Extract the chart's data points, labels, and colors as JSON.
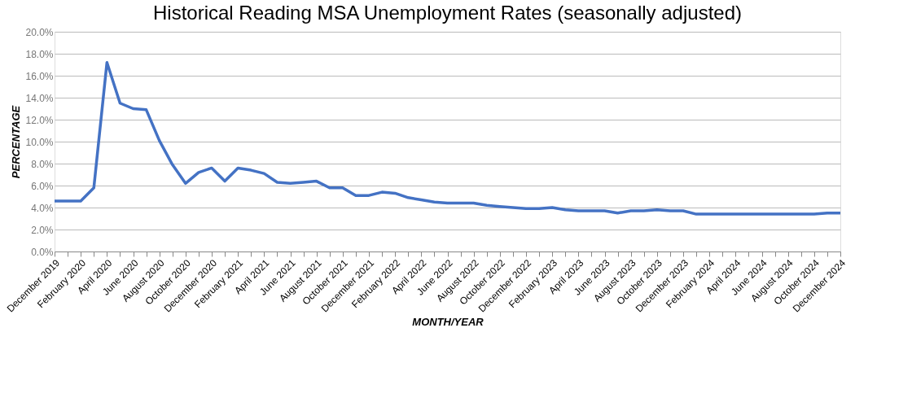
{
  "chart_data": {
    "type": "line",
    "title": "Historical Reading MSA Unemployment Rates (seasonally adjusted)",
    "xlabel": "MONTH/YEAR",
    "ylabel": "PERCENTAGE",
    "categories": [
      "December 2019",
      null,
      "February 2020",
      null,
      "April 2020",
      null,
      "June 2020",
      null,
      "August 2020",
      null,
      "October 2020",
      null,
      "December 2020",
      null,
      "February 2021",
      null,
      "April 2021",
      null,
      "June 2021",
      null,
      "August 2021",
      null,
      "October 2021",
      null,
      "December 2021",
      null,
      "February 2022",
      null,
      "April 2022",
      null,
      "June 2022",
      null,
      "August 2022",
      null,
      "October 2022",
      null,
      "December 2022",
      null,
      "February 2023",
      null,
      "April 2023",
      null,
      "June 2023",
      null,
      "August 2023",
      null,
      "October 2023",
      null,
      "December 2023",
      null,
      "February 2024",
      null,
      "April 2024",
      null,
      "June 2024",
      null,
      "August 2024",
      null,
      "October 2024",
      null,
      "December 2024"
    ],
    "series": [
      {
        "color": "#4472c4",
        "values": [
          4.6,
          4.6,
          4.6,
          5.8,
          17.2,
          13.5,
          13.0,
          12.9,
          10.1,
          7.9,
          6.2,
          7.2,
          7.6,
          6.4,
          7.6,
          7.4,
          7.1,
          6.3,
          6.2,
          6.3,
          6.4,
          5.8,
          5.8,
          5.1,
          5.1,
          5.4,
          5.3,
          4.9,
          4.7,
          4.5,
          4.4,
          4.4,
          4.4,
          4.2,
          4.1,
          4.0,
          3.9,
          3.9,
          4.0,
          3.8,
          3.7,
          3.7,
          3.7,
          3.5,
          3.7,
          3.7,
          3.8,
          3.7,
          3.7,
          3.4,
          3.4,
          3.4,
          3.4,
          3.4,
          3.4,
          3.4,
          3.4,
          3.4,
          3.4,
          3.5,
          3.5
        ]
      }
    ],
    "ylim": [
      0,
      20
    ],
    "yticks": [
      {
        "value": 0,
        "label": "0.0%"
      },
      {
        "value": 2,
        "label": "2.0%"
      },
      {
        "value": 4,
        "label": "4.0%"
      },
      {
        "value": 6,
        "label": "6.0%"
      },
      {
        "value": 8,
        "label": "8.0%"
      },
      {
        "value": 10,
        "label": "10.0%"
      },
      {
        "value": 12,
        "label": "12.0%"
      },
      {
        "value": 14,
        "label": "14.0%"
      },
      {
        "value": 16,
        "label": "16.0%"
      },
      {
        "value": 18,
        "label": "18.0%"
      },
      {
        "value": 20,
        "label": "20.0%"
      }
    ],
    "grid": "y",
    "marker": "none",
    "line_style": "solid"
  }
}
